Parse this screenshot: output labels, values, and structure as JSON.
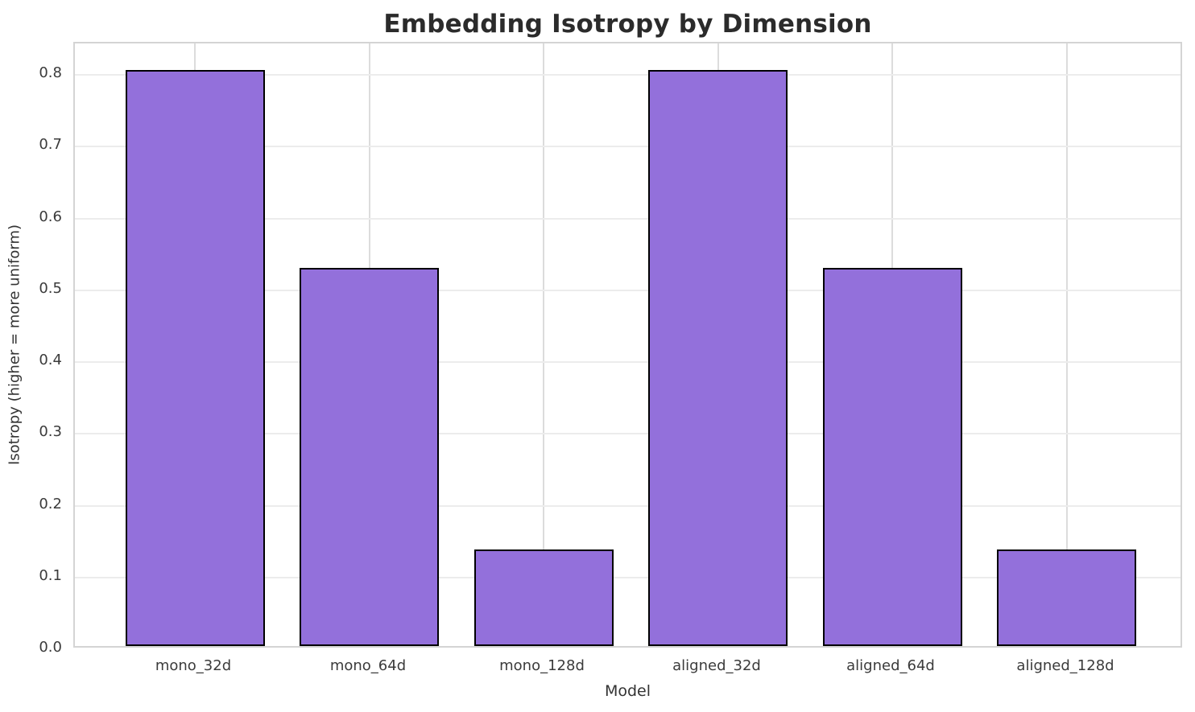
{
  "chart_data": {
    "type": "bar",
    "title": "Embedding Isotropy by Dimension",
    "xlabel": "Model",
    "ylabel": "Isotropy (higher = more uniform)",
    "categories": [
      "mono_32d",
      "mono_64d",
      "mono_128d",
      "aligned_32d",
      "aligned_64d",
      "aligned_128d"
    ],
    "values": [
      0.803,
      0.527,
      0.134,
      0.803,
      0.527,
      0.134
    ],
    "ylim": [
      0,
      0.844
    ],
    "yticks": [
      0.0,
      0.1,
      0.2,
      0.3,
      0.4,
      0.5,
      0.6,
      0.7,
      0.8
    ],
    "ytick_labels": [
      "0.0",
      "0.1",
      "0.2",
      "0.3",
      "0.4",
      "0.5",
      "0.6",
      "0.7",
      "0.8"
    ],
    "grid": true,
    "legend": false,
    "bar_color": "#9370DB",
    "bar_edge_color": "#000000",
    "colors": {
      "title": "#2b2b2b",
      "tick_label": "#3b3b3b",
      "grid_horizontal": "#ececec",
      "grid_vertical": "#dcdcdc",
      "spine": "#d4d4d4",
      "background": "#ffffff"
    }
  }
}
